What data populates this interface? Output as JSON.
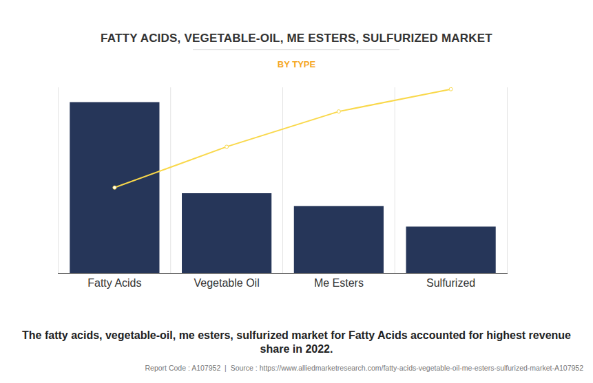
{
  "chart_data": {
    "type": "bar",
    "title": "FATTY ACIDS, VEGETABLE-OIL, ME ESTERS, SULFURIZED MARKET",
    "subtitle": "BY TYPE",
    "caption": "The fatty acids, vegetable-oil, me esters, sulfurized market for Fatty Acids accounted for highest revenue share in 2022.",
    "source": "Report Code : A107952  |  Source : https://www.alliedmarketresearch.com/fatty-acids-vegetable-oil-me-esters-sulfurized-market-A107952",
    "categories": [
      "Fatty Acids",
      "Vegetable Oil",
      "Me Esters",
      "Sulfurized"
    ],
    "series": [
      {
        "type": "bar",
        "color": "#263659",
        "values": [
          92,
          43,
          36,
          25
        ]
      },
      {
        "type": "line",
        "color": "#f9d84a",
        "marker": "circle",
        "values": [
          46,
          68,
          87,
          99
        ]
      }
    ],
    "ylim": [
      0,
      100
    ],
    "yticks": [],
    "tick_labels": "x",
    "grid": true
  }
}
